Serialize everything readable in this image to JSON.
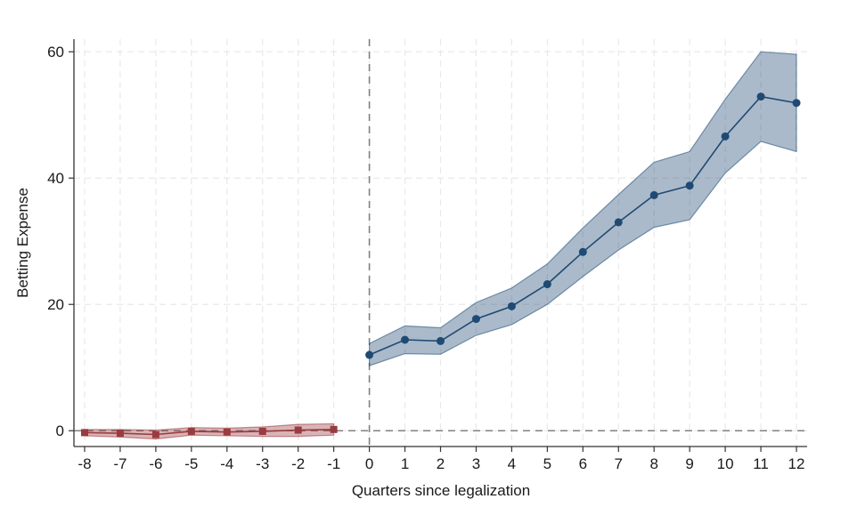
{
  "chart_data": {
    "type": "line",
    "xlabel": "Quarters since legalization",
    "ylabel": "Betting Expense",
    "xlim": [
      -8.3,
      12.3
    ],
    "ylim": [
      -2.5,
      62
    ],
    "x_ticks": [
      -8,
      -7,
      -6,
      -5,
      -4,
      -3,
      -2,
      -1,
      0,
      1,
      2,
      3,
      4,
      5,
      6,
      7,
      8,
      9,
      10,
      11,
      12
    ],
    "y_ticks": [
      0,
      20,
      40,
      60
    ],
    "grid": true,
    "reference_lines": {
      "x": 0,
      "y": 0
    },
    "series": [
      {
        "marker": "square",
        "color": "#9a3b40",
        "x": [
          -8,
          -7,
          -6,
          -5,
          -4,
          -3,
          -2,
          -1
        ],
        "values": [
          -0.3,
          -0.4,
          -0.6,
          -0.1,
          -0.2,
          -0.1,
          0.1,
          0.2
        ],
        "ci_low": [
          -0.8,
          -1.0,
          -1.3,
          -0.7,
          -0.8,
          -0.9,
          -0.9,
          -0.7
        ],
        "ci_high": [
          0.2,
          0.2,
          0.1,
          0.5,
          0.4,
          0.6,
          1.0,
          1.1
        ]
      },
      {
        "marker": "circle",
        "color": "#1f4a73",
        "x": [
          0,
          1,
          2,
          3,
          4,
          5,
          6,
          7,
          8,
          9,
          10,
          11,
          12
        ],
        "values": [
          12.0,
          14.4,
          14.2,
          17.7,
          19.7,
          23.2,
          28.3,
          33.0,
          37.3,
          38.8,
          46.6,
          52.9,
          51.9
        ],
        "ci_low": [
          10.3,
          12.2,
          12.1,
          15.1,
          16.8,
          20.0,
          24.4,
          28.6,
          32.2,
          33.4,
          40.8,
          45.8,
          44.2
        ],
        "ci_high": [
          13.8,
          16.6,
          16.3,
          20.3,
          22.6,
          26.4,
          32.1,
          37.4,
          42.5,
          44.2,
          52.5,
          60.0,
          59.6
        ]
      }
    ]
  }
}
